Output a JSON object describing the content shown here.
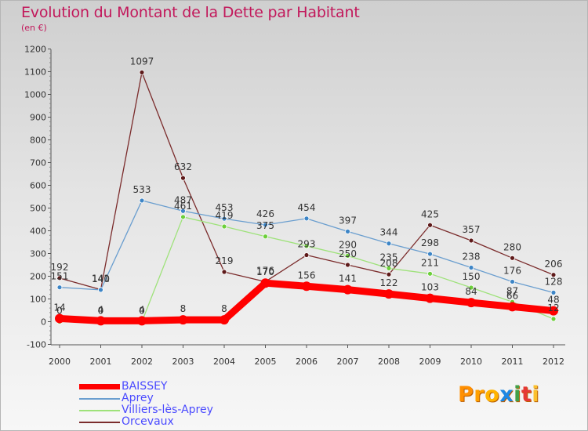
{
  "title": "Evolution du Montant de la Dette par Habitant",
  "subtitle": "(en €)",
  "logo": {
    "text": "Proxiti",
    "letters": [
      "P",
      "r",
      "o",
      "x",
      "i",
      "t",
      "i"
    ]
  },
  "chart_data": {
    "type": "line",
    "title": "Evolution du Montant de la Dette par Habitant",
    "subtitle": "(en €)",
    "x": [
      "2000",
      "2001",
      "2002",
      "2003",
      "2004",
      "2005",
      "2006",
      "2007",
      "2008",
      "2009",
      "2010",
      "2011",
      "2012"
    ],
    "ylim": [
      -100,
      1200
    ],
    "yticks": [
      -100,
      0,
      100,
      200,
      300,
      400,
      500,
      600,
      700,
      800,
      900,
      1000,
      1100,
      1200
    ],
    "grid": false,
    "legend_position": "bottom-left",
    "series": [
      {
        "name": "BAISSEY",
        "color": "#ff0000",
        "marker_color": "#ff0000",
        "emphasis": true,
        "values": [
          14,
          4,
          4,
          8,
          8,
          170,
          156,
          141,
          122,
          103,
          84,
          66,
          48
        ],
        "labels": [
          "14",
          "4",
          "4",
          "8",
          "8",
          "170",
          "156",
          "141",
          "122",
          "103",
          "84",
          "66",
          "48"
        ]
      },
      {
        "name": "Aprey",
        "color": "#6a9ecf",
        "marker_color": "#3d85c6",
        "values": [
          151,
          140,
          533,
          487,
          453,
          426,
          454,
          397,
          344,
          298,
          238,
          176,
          128
        ],
        "labels": [
          "151",
          "140",
          "533",
          "487",
          "453",
          "426",
          "454",
          "397",
          "344",
          "298",
          "238",
          "176",
          "128"
        ]
      },
      {
        "name": "Villiers-lès-Aprey",
        "color": "#9ee27a",
        "marker_color": "#6ccf3a",
        "values": [
          0,
          0,
          0,
          461,
          419,
          375,
          333,
          290,
          235,
          211,
          150,
          87,
          12
        ],
        "labels": [
          "0",
          "0",
          "0",
          "461",
          "419",
          "375",
          "",
          "290",
          "235",
          "211",
          "150",
          "87",
          "12"
        ]
      },
      {
        "name": "Orcevaux",
        "color": "#7b2c2c",
        "marker_color": "#5e1a1a",
        "values": [
          192,
          141,
          1097,
          632,
          219,
          176,
          293,
          250,
          208,
          425,
          357,
          280,
          206
        ],
        "labels": [
          "192",
          "141",
          "1097",
          "632",
          "219",
          "176",
          "293",
          "250",
          "208",
          "425",
          "357",
          "280",
          "206"
        ]
      }
    ]
  }
}
